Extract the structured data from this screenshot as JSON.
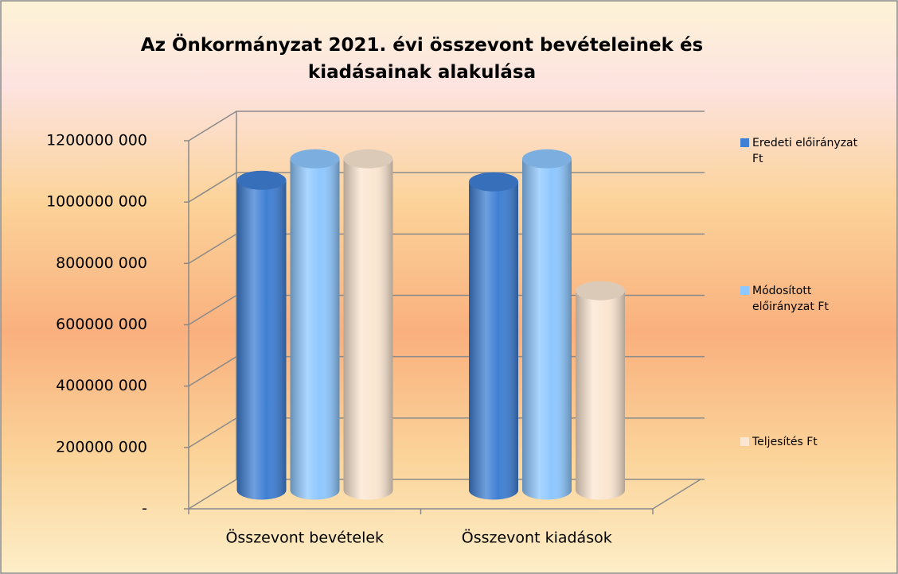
{
  "chart_data": {
    "type": "bar3d",
    "title": "Az Önkormányzat 2021. évi összevont bevételeinek és kiadásainak alakulása",
    "categories": [
      "Összevont bevételek",
      "Összevont kiadások"
    ],
    "series": [
      {
        "name": "Eredeti előirányzat Ft",
        "color": "#3f7fd4",
        "values": [
          1010000000,
          1005000000
        ]
      },
      {
        "name": "Módosított előirányzat  Ft",
        "color": "#8ec8ff",
        "values": [
          1080000000,
          1080000000
        ]
      },
      {
        "name": "Teljesítés  Ft",
        "color": "#fbe6d2",
        "values": [
          1080000000,
          650000000
        ]
      }
    ],
    "ylim": [
      0,
      1200000000
    ],
    "yticks": [
      {
        "value": 0,
        "label": "-"
      },
      {
        "value": 200000000,
        "label": "200000 000"
      },
      {
        "value": 400000000,
        "label": "400000 000"
      },
      {
        "value": 600000000,
        "label": "600000 000"
      },
      {
        "value": 800000000,
        "label": "800000 000"
      },
      {
        "value": 1000000000,
        "label": "1000000 000"
      },
      {
        "value": 1200000000,
        "label": "1200000 000"
      }
    ],
    "grid": true
  }
}
